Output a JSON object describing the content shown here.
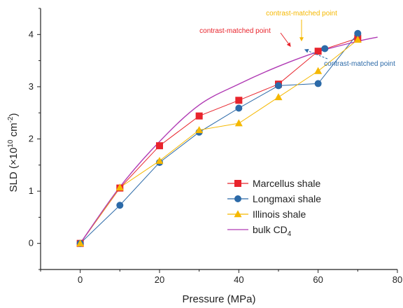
{
  "chart_data": {
    "type": "line",
    "title": "",
    "xlabel": "Pressure (MPa)",
    "ylabel": "SLD (×10¹⁰ cm⁻²)",
    "xlim": [
      -10,
      80
    ],
    "ylim": [
      -0.5,
      4.5
    ],
    "xticks": [
      0,
      20,
      40,
      60,
      80
    ],
    "yticks": [
      0,
      1,
      2,
      3,
      4
    ],
    "grid": false,
    "legend_position": "right",
    "series": [
      {
        "name": "Marcellus shale",
        "color": "#e8242c",
        "marker": "square",
        "x": [
          0,
          10,
          20,
          30,
          40,
          50,
          60,
          70
        ],
        "y": [
          0.0,
          1.06,
          1.87,
          2.44,
          2.74,
          3.05,
          3.68,
          3.93
        ]
      },
      {
        "name": "Longmaxi shale",
        "color": "#2c6aa8",
        "marker": "circle",
        "x": [
          0,
          10,
          20,
          30,
          40,
          50,
          60,
          70
        ],
        "y": [
          0.0,
          0.73,
          1.55,
          2.13,
          2.59,
          3.02,
          3.06,
          4.02
        ]
      },
      {
        "name": "Illinois shale",
        "color": "#f5b800",
        "marker": "triangle",
        "x": [
          0,
          10,
          20,
          30,
          40,
          50,
          60,
          70
        ],
        "y": [
          0.0,
          1.07,
          1.58,
          2.17,
          2.3,
          2.8,
          3.3,
          3.9
        ]
      },
      {
        "name": "bulk CD4",
        "color": "#b03ab4",
        "marker": "none",
        "x": [
          0,
          10,
          20,
          30,
          40,
          50,
          60,
          70,
          75
        ],
        "y": [
          0.0,
          1.08,
          1.95,
          2.65,
          3.05,
          3.39,
          3.67,
          3.87,
          3.95
        ]
      }
    ],
    "contrast_points": [
      {
        "x": 61.7,
        "y": 3.73,
        "color": "#2c6aa8",
        "marker": "circle"
      }
    ],
    "annotations": [
      {
        "text": "contrast-matched point",
        "color": "#e8242c",
        "target": [
          60.6,
          3.69
        ]
      },
      {
        "text": "contrast-matched point",
        "color": "#f5b800",
        "target": [
          62.0,
          3.73
        ]
      },
      {
        "text": "contrast-matched point",
        "color": "#2c6aa8",
        "target": [
          63.0,
          3.72
        ]
      }
    ]
  },
  "legend": {
    "items": [
      {
        "label": "Marcellus shale",
        "sub": ""
      },
      {
        "label": "Longmaxi shale",
        "sub": ""
      },
      {
        "label": "Illinois shale",
        "sub": ""
      },
      {
        "label": "bulk CD",
        "sub": "4"
      }
    ]
  },
  "axes": {
    "ylabel_main": "SLD (×10",
    "ylabel_exp1": "10",
    "ylabel_mid": " cm",
    "ylabel_exp2": "-2",
    "ylabel_end": ")"
  }
}
